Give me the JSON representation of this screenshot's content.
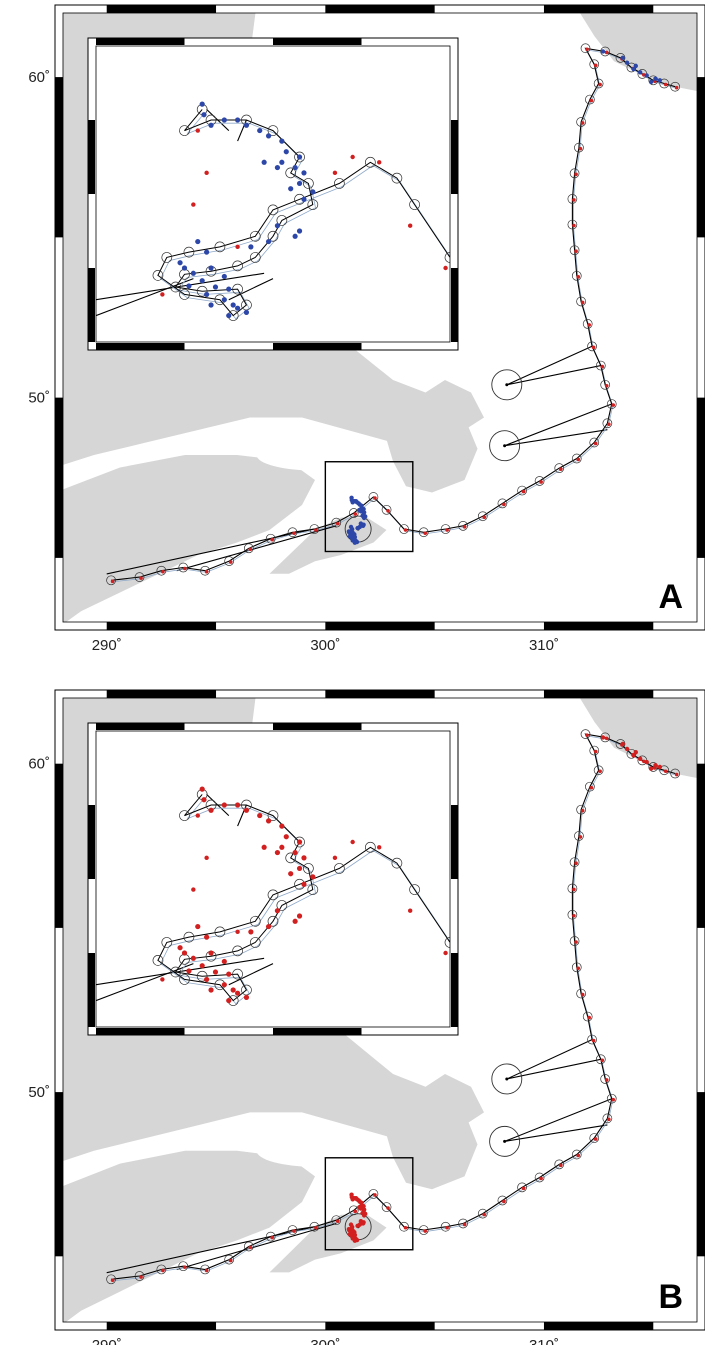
{
  "figure": {
    "colors": {
      "land": "#d6d6d6",
      "frame": "#000000",
      "track": "#000000",
      "track_alt": "#8fa9c9",
      "red_dot": "#d21f1f",
      "blue_dot": "#2d47a8",
      "error_circle": "#333333"
    },
    "axes": {
      "lon_ticks": [
        {
          "value": 290,
          "label": "290˚"
        },
        {
          "value": 300,
          "label": "300˚"
        },
        {
          "value": 310,
          "label": "310˚"
        }
      ],
      "lat_ticks": [
        {
          "value": 60,
          "label": "60˚"
        },
        {
          "value": 50,
          "label": "50˚"
        }
      ],
      "lon_range": [
        288,
        317
      ],
      "lat_range": [
        43,
        62
      ]
    },
    "panels": [
      {
        "id": "A",
        "label": "A",
        "inset_dot_color": "blue"
      },
      {
        "id": "B",
        "label": "B",
        "inset_dot_color": "red"
      }
    ],
    "main_track": [
      [
        290.2,
        44.3
      ],
      [
        291.5,
        44.4
      ],
      [
        292.5,
        44.6
      ],
      [
        293.5,
        44.7
      ],
      [
        294.5,
        44.6
      ],
      [
        295.6,
        44.9
      ],
      [
        296.5,
        45.3
      ],
      [
        297.5,
        45.6
      ],
      [
        298.5,
        45.8
      ],
      [
        299.5,
        45.9
      ],
      [
        300.5,
        46.1
      ],
      [
        301.3,
        46.4
      ],
      [
        302.2,
        46.9
      ],
      [
        302.8,
        46.5
      ],
      [
        303.6,
        45.9
      ],
      [
        304.5,
        45.8
      ],
      [
        305.5,
        45.9
      ],
      [
        306.3,
        46.0
      ],
      [
        307.2,
        46.3
      ],
      [
        308.1,
        46.7
      ],
      [
        309.0,
        47.1
      ],
      [
        309.8,
        47.4
      ],
      [
        310.7,
        47.8
      ],
      [
        311.5,
        48.1
      ],
      [
        312.3,
        48.6
      ],
      [
        312.9,
        49.2
      ],
      [
        313.1,
        49.8
      ],
      [
        312.8,
        50.4
      ],
      [
        312.6,
        51.0
      ],
      [
        312.2,
        51.6
      ],
      [
        312.0,
        52.3
      ],
      [
        311.7,
        53.0
      ],
      [
        311.5,
        53.8
      ],
      [
        311.4,
        54.6
      ],
      [
        311.3,
        55.4
      ],
      [
        311.3,
        56.2
      ],
      [
        311.4,
        57.0
      ],
      [
        311.6,
        57.8
      ],
      [
        311.7,
        58.6
      ],
      [
        312.1,
        59.3
      ],
      [
        312.5,
        59.8
      ],
      [
        312.3,
        60.4
      ],
      [
        311.9,
        60.9
      ],
      [
        312.8,
        60.8
      ],
      [
        313.5,
        60.6
      ],
      [
        314.0,
        60.3
      ],
      [
        314.5,
        60.1
      ],
      [
        315.0,
        59.9
      ],
      [
        315.5,
        59.8
      ],
      [
        316.0,
        59.7
      ]
    ],
    "excursions": [
      [
        [
          312.2,
          51.6
        ],
        [
          308.3,
          50.4
        ],
        [
          312.6,
          51.0
        ]
      ],
      [
        [
          313.1,
          49.8
        ],
        [
          308.2,
          48.5
        ],
        [
          312.9,
          49.0
        ]
      ],
      [
        [
          299.5,
          45.9
        ],
        [
          290.0,
          44.5
        ]
      ],
      [
        [
          300.5,
          46.0
        ],
        [
          293.2,
          44.6
        ]
      ]
    ],
    "big_circles": [
      [
        308.3,
        50.4
      ],
      [
        308.2,
        48.5
      ],
      [
        301.5,
        45.9
      ]
    ],
    "box": {
      "lon": [
        300,
        304
      ],
      "lat": [
        45.2,
        48.0
      ]
    },
    "inset": {
      "lon_range": [
        300,
        304
      ],
      "lat_range": [
        45.2,
        48.0
      ],
      "track": [
        [
          301.2,
          47.4
        ],
        [
          301.0,
          47.2
        ],
        [
          301.3,
          47.3
        ],
        [
          301.7,
          47.3
        ],
        [
          302.0,
          47.2
        ],
        [
          302.3,
          46.95
        ],
        [
          302.2,
          46.8
        ],
        [
          302.4,
          46.7
        ],
        [
          302.45,
          46.5
        ],
        [
          302.1,
          46.35
        ],
        [
          302.0,
          46.2
        ],
        [
          301.8,
          46.0
        ],
        [
          301.6,
          45.92
        ],
        [
          301.3,
          45.87
        ],
        [
          301.0,
          45.84
        ],
        [
          300.9,
          45.72
        ],
        [
          301.2,
          45.68
        ],
        [
          301.6,
          45.7
        ],
        [
          301.7,
          45.55
        ],
        [
          301.55,
          45.45
        ],
        [
          301.4,
          45.6
        ],
        [
          301.0,
          45.65
        ],
        [
          300.7,
          45.83
        ],
        [
          300.8,
          46.0
        ],
        [
          301.05,
          46.05
        ],
        [
          301.4,
          46.1
        ],
        [
          301.8,
          46.2
        ],
        [
          302.0,
          46.45
        ],
        [
          302.3,
          46.55
        ],
        [
          302.75,
          46.7
        ],
        [
          303.1,
          46.9
        ],
        [
          303.4,
          46.75
        ],
        [
          303.6,
          46.5
        ],
        [
          304.0,
          46.0
        ]
      ],
      "extra_lines": [
        [
          [
            300.0,
            45.6
          ],
          [
            301.9,
            45.85
          ]
        ],
        [
          [
            300.0,
            45.45
          ],
          [
            301.1,
            45.8
          ]
        ],
        [
          [
            301.5,
            45.6
          ],
          [
            302.0,
            45.8
          ]
        ],
        [
          [
            301.25,
            47.4
          ],
          [
            301.5,
            47.2
          ]
        ],
        [
          [
            301.7,
            47.3
          ],
          [
            301.6,
            47.1
          ]
        ]
      ],
      "dots": [
        [
          301.2,
          47.45
        ],
        [
          301.22,
          47.35
        ],
        [
          301.3,
          47.25
        ],
        [
          301.45,
          47.3
        ],
        [
          301.6,
          47.3
        ],
        [
          301.7,
          47.25
        ],
        [
          301.85,
          47.2
        ],
        [
          301.95,
          47.15
        ],
        [
          302.1,
          47.1
        ],
        [
          302.15,
          47.0
        ],
        [
          302.3,
          46.95
        ],
        [
          302.1,
          46.9
        ],
        [
          302.25,
          46.85
        ],
        [
          302.05,
          46.85
        ],
        [
          301.9,
          46.9
        ],
        [
          302.35,
          46.8
        ],
        [
          302.3,
          46.7
        ],
        [
          302.45,
          46.62
        ],
        [
          302.2,
          46.65
        ],
        [
          302.35,
          46.55
        ],
        [
          302.05,
          46.3
        ],
        [
          302.3,
          46.25
        ],
        [
          302.25,
          46.2
        ],
        [
          301.95,
          46.15
        ],
        [
          301.75,
          46.1
        ],
        [
          301.15,
          46.15
        ],
        [
          301.25,
          46.05
        ],
        [
          300.95,
          45.95
        ],
        [
          301.0,
          45.9
        ],
        [
          301.1,
          45.85
        ],
        [
          301.3,
          45.9
        ],
        [
          301.45,
          45.82
        ],
        [
          301.2,
          45.78
        ],
        [
          301.05,
          45.73
        ],
        [
          301.35,
          45.72
        ],
        [
          301.5,
          45.7
        ],
        [
          301.25,
          45.65
        ],
        [
          301.45,
          45.6
        ],
        [
          301.55,
          45.55
        ],
        [
          301.6,
          45.52
        ],
        [
          301.3,
          45.55
        ],
        [
          301.7,
          45.48
        ],
        [
          301.5,
          45.45
        ]
      ],
      "red_dots": [
        [
          301.1,
          46.5
        ],
        [
          301.6,
          46.1
        ],
        [
          302.7,
          46.8
        ],
        [
          302.9,
          46.95
        ],
        [
          303.2,
          46.9
        ],
        [
          303.55,
          46.3
        ],
        [
          303.95,
          45.9
        ],
        [
          300.75,
          45.65
        ],
        [
          301.15,
          47.2
        ],
        [
          301.25,
          46.8
        ]
      ]
    }
  }
}
